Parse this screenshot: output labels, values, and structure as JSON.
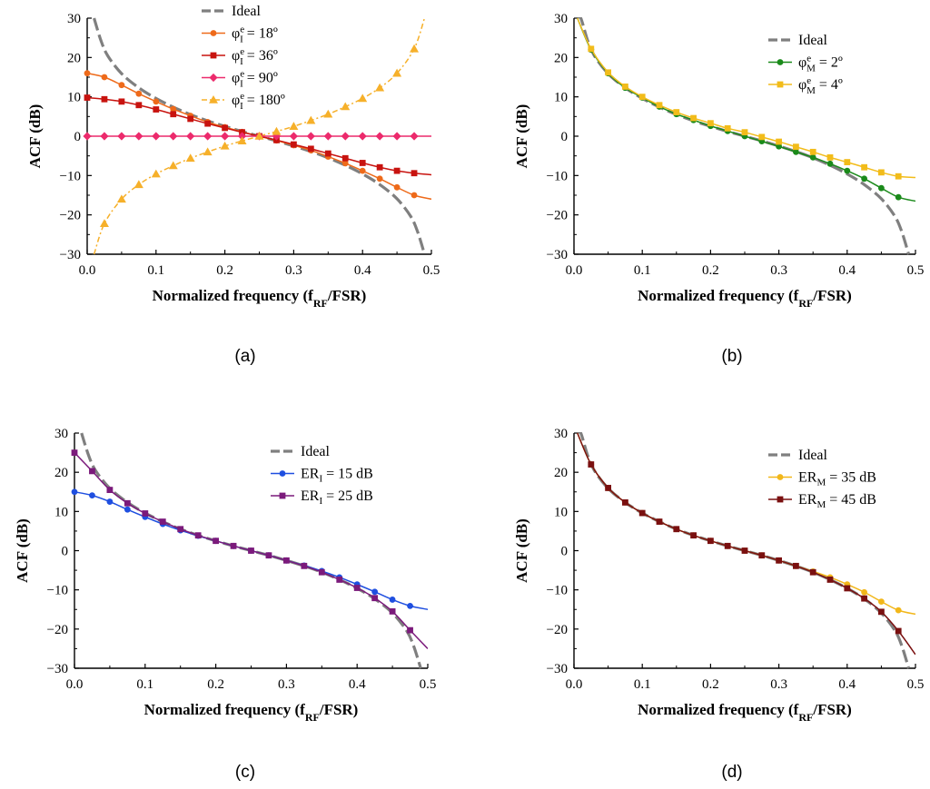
{
  "chart_data": [
    {
      "panel_label": "(a)",
      "type": "line",
      "xlabel": "Normalized frequency (f_RF/FSR)",
      "ylabel": "ACF (dB)",
      "xlim": [
        0,
        0.5
      ],
      "ylim": [
        -30,
        30
      ],
      "xticks": [
        "0.0",
        "0.1",
        "0.2",
        "0.3",
        "0.4",
        "0.5"
      ],
      "yticks": [
        "−30",
        "−20",
        "−10",
        "0",
        "10",
        "20",
        "30"
      ],
      "legend_position": "top-center",
      "series": [
        {
          "name": "Ideal",
          "color": "#7f7f7f",
          "style": "dashed",
          "marker": "none",
          "x": [
            0.01,
            0.02,
            0.03,
            0.05,
            0.075,
            0.1,
            0.125,
            0.15,
            0.175,
            0.2,
            0.225,
            0.25,
            0.275,
            0.3,
            0.325,
            0.35,
            0.375,
            0.4,
            0.425,
            0.45,
            0.47,
            0.48,
            0.49
          ],
          "y": [
            30,
            24.3,
            20.4,
            15.9,
            12.3,
            9.6,
            7.4,
            5.5,
            3.9,
            2.5,
            1.2,
            0,
            -1.2,
            -2.5,
            -3.9,
            -5.5,
            -7.4,
            -9.6,
            -12.3,
            -15.9,
            -20.4,
            -24.3,
            -30
          ]
        },
        {
          "name": "φeI = 18º",
          "name_base": "φ",
          "name_sup": "e",
          "name_sub": "I",
          "name_suffix": " = 18º",
          "color": "#ee6a1a",
          "marker": "circle",
          "x": [
            0,
            0.025,
            0.05,
            0.075,
            0.1,
            0.125,
            0.15,
            0.175,
            0.2,
            0.225,
            0.25,
            0.275,
            0.3,
            0.325,
            0.35,
            0.375,
            0.4,
            0.425,
            0.45,
            0.475,
            0.5
          ],
          "y": [
            16,
            15,
            13,
            10.8,
            8.8,
            6.9,
            5.2,
            3.6,
            2.3,
            1.1,
            0,
            -1.1,
            -2.3,
            -3.6,
            -5.2,
            -6.9,
            -8.8,
            -10.8,
            -13,
            -15,
            -16
          ]
        },
        {
          "name": "φeI = 36º",
          "name_base": "φ",
          "name_sup": "e",
          "name_sub": "I",
          "name_suffix": " = 36º",
          "color": "#c8130f",
          "marker": "square",
          "x": [
            0,
            0.025,
            0.05,
            0.075,
            0.1,
            0.125,
            0.15,
            0.175,
            0.2,
            0.225,
            0.25,
            0.275,
            0.3,
            0.325,
            0.35,
            0.375,
            0.4,
            0.425,
            0.45,
            0.475,
            0.5
          ],
          "y": [
            9.8,
            9.4,
            8.8,
            7.9,
            6.8,
            5.6,
            4.4,
            3.2,
            2.1,
            1,
            0,
            -1,
            -2.1,
            -3.2,
            -4.4,
            -5.6,
            -6.8,
            -7.9,
            -8.8,
            -9.4,
            -9.8
          ]
        },
        {
          "name": "φeI = 90º",
          "name_base": "φ",
          "name_sup": "e",
          "name_sub": "I",
          "name_suffix": " = 90º",
          "color": "#ec2a6c",
          "marker": "diamond",
          "x": [
            0,
            0.025,
            0.05,
            0.075,
            0.1,
            0.125,
            0.15,
            0.175,
            0.2,
            0.225,
            0.25,
            0.275,
            0.3,
            0.325,
            0.35,
            0.375,
            0.4,
            0.425,
            0.45,
            0.475,
            0.5
          ],
          "y": [
            0,
            0,
            0,
            0,
            0,
            0,
            0,
            0,
            0,
            0,
            0,
            0,
            0,
            0,
            0,
            0,
            0,
            0,
            0,
            0,
            0
          ]
        },
        {
          "name": "φeI = 180º",
          "name_base": "φ",
          "name_sup": "e",
          "name_sub": "I",
          "name_suffix": " = 180º",
          "color": "#f6b02a",
          "style": "dash-dot",
          "marker": "triangle",
          "x": [
            0.01,
            0.025,
            0.05,
            0.075,
            0.1,
            0.125,
            0.15,
            0.175,
            0.2,
            0.225,
            0.25,
            0.275,
            0.3,
            0.325,
            0.35,
            0.375,
            0.4,
            0.425,
            0.45,
            0.475,
            0.49
          ],
          "y": [
            -30,
            -22.2,
            -16,
            -12.3,
            -9.6,
            -7.5,
            -5.6,
            -4,
            -2.5,
            -1.2,
            0,
            1.2,
            2.5,
            4,
            5.6,
            7.5,
            9.6,
            12.3,
            16,
            22.2,
            30
          ]
        }
      ]
    },
    {
      "panel_label": "(b)",
      "type": "line",
      "xlabel": "Normalized frequency (f_RF/FSR)",
      "ylabel": "ACF (dB)",
      "xlim": [
        0,
        0.5
      ],
      "ylim": [
        -30,
        30
      ],
      "xticks": [
        "0.0",
        "0.1",
        "0.2",
        "0.3",
        "0.4",
        "0.5"
      ],
      "yticks": [
        "−30",
        "−20",
        "−10",
        "0",
        "10",
        "20",
        "30"
      ],
      "legend_position": "top-right",
      "series": [
        {
          "name": "Ideal",
          "color": "#7f7f7f",
          "style": "dashed",
          "marker": "none",
          "x": [
            0.005,
            0.01,
            0.02,
            0.03,
            0.05,
            0.075,
            0.1,
            0.125,
            0.15,
            0.175,
            0.2,
            0.225,
            0.25,
            0.275,
            0.3,
            0.325,
            0.35,
            0.375,
            0.4,
            0.425,
            0.45,
            0.47,
            0.48,
            0.49
          ],
          "y": [
            30,
            30,
            24.3,
            20.4,
            15.9,
            12.3,
            9.6,
            7.4,
            5.5,
            3.9,
            2.5,
            1.2,
            0,
            -1.2,
            -2.5,
            -3.9,
            -5.5,
            -7.4,
            -9.6,
            -12.3,
            -15.9,
            -20.4,
            -24.3,
            -30
          ]
        },
        {
          "name": "φeM = 2º",
          "name_base": "φ",
          "name_sup": "e",
          "name_sub": "M",
          "name_suffix": " = 2º",
          "color": "#1a8a1a",
          "marker": "circle",
          "x": [
            0.005,
            0.025,
            0.05,
            0.075,
            0.1,
            0.125,
            0.15,
            0.175,
            0.2,
            0.225,
            0.25,
            0.275,
            0.3,
            0.325,
            0.35,
            0.375,
            0.4,
            0.425,
            0.45,
            0.475,
            0.5
          ],
          "y": [
            30,
            22,
            16,
            12.3,
            9.8,
            7.5,
            5.6,
            4.1,
            2.6,
            1.3,
            0,
            -1.3,
            -2.6,
            -4.0,
            -5.4,
            -7.0,
            -8.8,
            -10.8,
            -13.2,
            -15.5,
            -16.5
          ]
        },
        {
          "name": "φeM = 4º",
          "name_base": "φ",
          "name_sup": "e",
          "name_sub": "M",
          "name_suffix": " = 4º",
          "color": "#f2bc1a",
          "marker": "square",
          "x": [
            0.005,
            0.025,
            0.05,
            0.075,
            0.1,
            0.125,
            0.15,
            0.175,
            0.2,
            0.225,
            0.25,
            0.275,
            0.3,
            0.325,
            0.35,
            0.375,
            0.4,
            0.425,
            0.45,
            0.475,
            0.5
          ],
          "y": [
            30,
            22.2,
            16.2,
            12.6,
            10,
            7.9,
            6.1,
            4.6,
            3.3,
            2,
            1,
            -0.2,
            -1.4,
            -2.7,
            -4,
            -5.4,
            -6.6,
            -7.9,
            -9.2,
            -10.2,
            -10.5
          ]
        }
      ]
    },
    {
      "panel_label": "(c)",
      "type": "line",
      "xlabel": "Normalized frequency (f_RF/FSR)",
      "ylabel": "ACF (dB)",
      "xlim": [
        0,
        0.5
      ],
      "ylim": [
        -30,
        30
      ],
      "xticks": [
        "0.0",
        "0.1",
        "0.2",
        "0.3",
        "0.4",
        "0.5"
      ],
      "yticks": [
        "−30",
        "−20",
        "−10",
        "0",
        "10",
        "20",
        "30"
      ],
      "legend_position": "top-right",
      "series": [
        {
          "name": "Ideal",
          "color": "#7f7f7f",
          "style": "dashed",
          "marker": "none",
          "x": [
            0.01,
            0.02,
            0.03,
            0.05,
            0.075,
            0.1,
            0.125,
            0.15,
            0.175,
            0.2,
            0.225,
            0.25,
            0.275,
            0.3,
            0.325,
            0.35,
            0.375,
            0.4,
            0.425,
            0.45,
            0.47,
            0.48,
            0.49
          ],
          "y": [
            30,
            24.3,
            20.4,
            15.9,
            12.3,
            9.6,
            7.4,
            5.5,
            3.9,
            2.5,
            1.2,
            0,
            -1.2,
            -2.5,
            -3.9,
            -5.5,
            -7.4,
            -9.6,
            -12.3,
            -15.9,
            -20.4,
            -24.3,
            -30
          ]
        },
        {
          "name": "ERI = 15 dB",
          "name_base": "ER",
          "name_sup": "",
          "name_sub": "I",
          "name_suffix": " = 15 dB",
          "color": "#1f4fe0",
          "marker": "circle",
          "x": [
            0,
            0.025,
            0.05,
            0.075,
            0.1,
            0.125,
            0.15,
            0.175,
            0.2,
            0.225,
            0.25,
            0.275,
            0.3,
            0.325,
            0.35,
            0.375,
            0.4,
            0.425,
            0.45,
            0.475,
            0.5
          ],
          "y": [
            15,
            14.1,
            12.5,
            10.5,
            8.6,
            6.8,
            5.2,
            3.8,
            2.5,
            1.2,
            0,
            -1.2,
            -2.5,
            -3.8,
            -5.2,
            -6.8,
            -8.6,
            -10.5,
            -12.5,
            -14.1,
            -15
          ]
        },
        {
          "name": "ERI = 25 dB",
          "name_base": "ER",
          "name_sup": "",
          "name_sub": "I",
          "name_suffix": " = 25 dB",
          "color": "#7b1a7b",
          "marker": "square",
          "x": [
            0,
            0.025,
            0.05,
            0.075,
            0.1,
            0.125,
            0.15,
            0.175,
            0.2,
            0.225,
            0.25,
            0.275,
            0.3,
            0.325,
            0.35,
            0.375,
            0.4,
            0.425,
            0.45,
            0.475,
            0.5
          ],
          "y": [
            25,
            20.3,
            15.5,
            12.1,
            9.5,
            7.4,
            5.5,
            3.9,
            2.5,
            1.2,
            0,
            -1.2,
            -2.5,
            -3.9,
            -5.5,
            -7.4,
            -9.5,
            -12.1,
            -15.5,
            -20.3,
            -25
          ]
        }
      ]
    },
    {
      "panel_label": "(d)",
      "type": "line",
      "xlabel": "Normalized frequency (f_RF/FSR)",
      "ylabel": "ACF (dB)",
      "xlim": [
        0,
        0.5
      ],
      "ylim": [
        -30,
        30
      ],
      "xticks": [
        "0.0",
        "0.1",
        "0.2",
        "0.3",
        "0.4",
        "0.5"
      ],
      "yticks": [
        "−30",
        "−20",
        "−10",
        "0",
        "10",
        "20",
        "30"
      ],
      "legend_position": "top-right",
      "series": [
        {
          "name": "Ideal",
          "color": "#7f7f7f",
          "style": "dashed",
          "marker": "none",
          "x": [
            0.005,
            0.01,
            0.02,
            0.03,
            0.05,
            0.075,
            0.1,
            0.125,
            0.15,
            0.175,
            0.2,
            0.225,
            0.25,
            0.275,
            0.3,
            0.325,
            0.35,
            0.375,
            0.4,
            0.425,
            0.45,
            0.47,
            0.48,
            0.49
          ],
          "y": [
            30,
            30,
            24.3,
            20.4,
            15.9,
            12.3,
            9.6,
            7.4,
            5.5,
            3.9,
            2.5,
            1.2,
            0,
            -1.2,
            -2.5,
            -3.9,
            -5.5,
            -7.4,
            -9.6,
            -12.3,
            -15.9,
            -20.4,
            -24.3,
            -30
          ]
        },
        {
          "name": "ERM = 35 dB",
          "name_base": "ER",
          "name_sup": "",
          "name_sub": "M",
          "name_suffix": " = 35 dB",
          "color": "#f2b71a",
          "marker": "circle",
          "x": [
            0.005,
            0.025,
            0.05,
            0.075,
            0.1,
            0.125,
            0.15,
            0.175,
            0.2,
            0.225,
            0.25,
            0.275,
            0.3,
            0.325,
            0.35,
            0.375,
            0.4,
            0.425,
            0.45,
            0.475,
            0.5
          ],
          "y": [
            30,
            22,
            16,
            12.3,
            9.6,
            7.4,
            5.5,
            3.9,
            2.5,
            1.2,
            0,
            -1.2,
            -2.5,
            -3.9,
            -5.3,
            -6.8,
            -8.6,
            -10.6,
            -13,
            -15.2,
            -16.2
          ]
        },
        {
          "name": "ERM = 45 dB",
          "name_base": "ER",
          "name_sup": "",
          "name_sub": "M",
          "name_suffix": " = 45 dB",
          "color": "#7a1010",
          "marker": "square",
          "x": [
            0.005,
            0.025,
            0.05,
            0.075,
            0.1,
            0.125,
            0.15,
            0.175,
            0.2,
            0.225,
            0.25,
            0.275,
            0.3,
            0.325,
            0.35,
            0.375,
            0.4,
            0.425,
            0.45,
            0.475,
            0.5
          ],
          "y": [
            30,
            22,
            16,
            12.3,
            9.6,
            7.4,
            5.5,
            3.9,
            2.5,
            1.2,
            0,
            -1.2,
            -2.5,
            -3.9,
            -5.5,
            -7.4,
            -9.6,
            -12.2,
            -15.6,
            -20.5,
            -26.5
          ]
        }
      ]
    }
  ]
}
